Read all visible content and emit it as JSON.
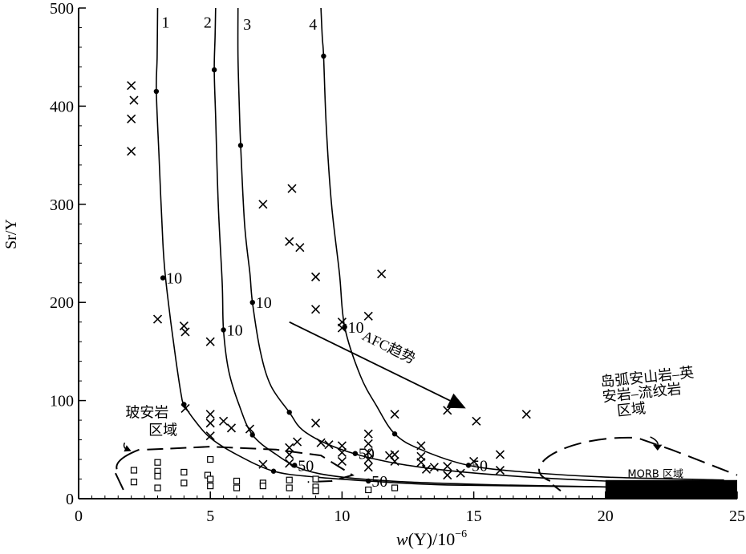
{
  "chart_data": {
    "type": "scatter",
    "xlabel_italic": "w",
    "xlabel_rest": "(Y)/10",
    "xlabel_sup": "−6",
    "ylabel": "Sr/Y",
    "xlim": [
      0,
      25
    ],
    "ylim": [
      0,
      500
    ],
    "x_ticks": [
      0,
      5,
      10,
      15,
      20,
      25
    ],
    "y_ticks": [
      0,
      100,
      200,
      300,
      400,
      500
    ],
    "x_minor_step": 0.5,
    "y_minor_step": 20,
    "grid": false,
    "curves": [
      {
        "label": "1",
        "points": [
          [
            3.0,
            500
          ],
          [
            2.98,
            450
          ],
          [
            2.95,
            415
          ],
          [
            3.05,
            350
          ],
          [
            3.2,
            260
          ],
          [
            3.3,
            225
          ],
          [
            3.5,
            180
          ],
          [
            3.7,
            140
          ],
          [
            3.9,
            105
          ],
          [
            4.0,
            96
          ],
          [
            4.4,
            80
          ],
          [
            5.0,
            62
          ],
          [
            6.0,
            45
          ],
          [
            7.4,
            28
          ],
          [
            9.0,
            22
          ],
          [
            11.0,
            18
          ],
          [
            14.0,
            14
          ],
          [
            20.0,
            12
          ],
          [
            24.5,
            10
          ]
        ],
        "markers": [
          [
            2.95,
            415
          ],
          [
            3.2,
            225
          ],
          [
            4.0,
            96
          ],
          [
            7.4,
            28
          ],
          [
            11.0,
            18
          ]
        ],
        "marker_labels": [
          {
            "text": "10",
            "at": [
              3.2,
              225
            ]
          },
          {
            "text": "50",
            "at": [
              11.0,
              18
            ]
          }
        ],
        "label_at": [
          3.3,
          480
        ]
      },
      {
        "label": "2",
        "points": [
          [
            5.2,
            500
          ],
          [
            5.18,
            470
          ],
          [
            5.15,
            437
          ],
          [
            5.2,
            390
          ],
          [
            5.3,
            300
          ],
          [
            5.45,
            220
          ],
          [
            5.5,
            172
          ],
          [
            5.7,
            130
          ],
          [
            6.1,
            95
          ],
          [
            6.6,
            65
          ],
          [
            7.5,
            45
          ],
          [
            8.5,
            30
          ],
          [
            10.0,
            22
          ],
          [
            12.5,
            17
          ],
          [
            16.0,
            14
          ],
          [
            20.0,
            12
          ],
          [
            24.5,
            10
          ]
        ],
        "markers": [
          [
            5.15,
            437
          ],
          [
            5.5,
            172
          ],
          [
            6.6,
            65
          ]
        ],
        "marker_labels": [
          {
            "text": "10",
            "at": [
              5.5,
              172
            ]
          }
        ],
        "label_at": [
          4.9,
          480
        ]
      },
      {
        "label": "3",
        "points": [
          [
            6.05,
            500
          ],
          [
            6.05,
            450
          ],
          [
            6.1,
            400
          ],
          [
            6.15,
            360
          ],
          [
            6.3,
            280
          ],
          [
            6.5,
            230
          ],
          [
            6.6,
            200
          ],
          [
            6.9,
            150
          ],
          [
            7.3,
            115
          ],
          [
            8.0,
            88
          ],
          [
            8.5,
            70
          ],
          [
            9.5,
            55
          ],
          [
            11.0,
            42
          ],
          [
            13.0,
            32
          ],
          [
            16.0,
            24
          ],
          [
            20.0,
            18
          ],
          [
            24.5,
            15
          ]
        ],
        "markers": [
          [
            6.15,
            360
          ],
          [
            6.6,
            200
          ],
          [
            8.0,
            88
          ],
          [
            8.2,
            34
          ]
        ],
        "marker_labels": [
          {
            "text": "10",
            "at": [
              6.6,
              200
            ]
          },
          {
            "text": "50",
            "at": [
              8.2,
              34
            ]
          }
        ],
        "label_at": [
          6.4,
          478
        ]
      },
      {
        "label": "4",
        "points": [
          [
            9.2,
            500
          ],
          [
            9.25,
            470
          ],
          [
            9.3,
            451
          ],
          [
            9.4,
            380
          ],
          [
            9.6,
            300
          ],
          [
            9.9,
            230
          ],
          [
            10.1,
            175
          ],
          [
            10.7,
            125
          ],
          [
            11.3,
            95
          ],
          [
            12.0,
            66
          ],
          [
            13.0,
            50
          ],
          [
            14.8,
            34
          ],
          [
            17.0,
            27
          ],
          [
            20.0,
            22
          ],
          [
            24.5,
            19
          ]
        ],
        "markers": [
          [
            9.3,
            451
          ],
          [
            10.1,
            175
          ],
          [
            10.5,
            46
          ],
          [
            12.0,
            66
          ],
          [
            14.8,
            34
          ]
        ],
        "marker_labels": [
          {
            "text": "10",
            "at": [
              10.1,
              175
            ]
          },
          {
            "text": "50",
            "at": [
              10.5,
              46
            ]
          },
          {
            "text": "50",
            "at": [
              14.8,
              34
            ]
          }
        ],
        "label_at": [
          8.9,
          478
        ]
      }
    ],
    "crosses": [
      [
        2.0,
        421
      ],
      [
        2.1,
        406
      ],
      [
        2.0,
        387
      ],
      [
        2.0,
        354
      ],
      [
        3.0,
        183
      ],
      [
        4.0,
        176
      ],
      [
        4.05,
        170
      ],
      [
        4.05,
        92
      ],
      [
        5.0,
        160
      ],
      [
        5.0,
        86
      ],
      [
        5.0,
        77
      ],
      [
        5.0,
        64
      ],
      [
        5.5,
        79
      ],
      [
        5.8,
        72
      ],
      [
        6.5,
        71
      ],
      [
        7.0,
        300
      ],
      [
        7.0,
        35
      ],
      [
        8.1,
        316
      ],
      [
        8.0,
        262
      ],
      [
        8.4,
        256
      ],
      [
        8.0,
        52
      ],
      [
        8.0,
        45
      ],
      [
        8.3,
        58
      ],
      [
        8.0,
        36
      ],
      [
        9.0,
        226
      ],
      [
        9.0,
        193
      ],
      [
        9.0,
        77
      ],
      [
        9.2,
        57
      ],
      [
        9.5,
        55
      ],
      [
        10.0,
        180
      ],
      [
        10.0,
        174
      ],
      [
        10.0,
        54
      ],
      [
        10.0,
        47
      ],
      [
        10.0,
        38
      ],
      [
        11.0,
        186
      ],
      [
        11.0,
        66
      ],
      [
        11.0,
        56
      ],
      [
        11.0,
        47
      ],
      [
        11.0,
        40
      ],
      [
        11.0,
        32
      ],
      [
        11.5,
        229
      ],
      [
        11.8,
        44
      ],
      [
        12.0,
        86
      ],
      [
        12.0,
        45
      ],
      [
        12.0,
        38
      ],
      [
        13.0,
        54
      ],
      [
        13.0,
        43
      ],
      [
        13.0,
        37
      ],
      [
        13.2,
        30
      ],
      [
        13.5,
        32
      ],
      [
        14.0,
        90
      ],
      [
        14.0,
        33
      ],
      [
        14.0,
        24
      ],
      [
        14.5,
        26
      ],
      [
        15.0,
        38
      ],
      [
        15.1,
        79
      ],
      [
        16.0,
        45
      ],
      [
        16.0,
        29
      ],
      [
        17.0,
        86
      ]
    ],
    "squares": [
      [
        2.1,
        29
      ],
      [
        2.1,
        17
      ],
      [
        3.0,
        37
      ],
      [
        3.0,
        28
      ],
      [
        3.0,
        23
      ],
      [
        3.0,
        11
      ],
      [
        4.0,
        27
      ],
      [
        4.0,
        16
      ],
      [
        4.9,
        24
      ],
      [
        5.0,
        20
      ],
      [
        5.0,
        13
      ],
      [
        5.0,
        40
      ],
      [
        6.0,
        18
      ],
      [
        6.0,
        11
      ],
      [
        7.0,
        16
      ],
      [
        7.0,
        13
      ],
      [
        8.0,
        19
      ],
      [
        8.0,
        11
      ],
      [
        9.0,
        20
      ],
      [
        9.0,
        12
      ],
      [
        9.0,
        8
      ],
      [
        11.0,
        9
      ],
      [
        12.0,
        11
      ]
    ],
    "afc_arrow": {
      "label": "AFC趋势",
      "from": [
        8.0,
        180
      ],
      "to": [
        14.7,
        92
      ]
    },
    "regions": [
      {
        "label_lines": [
          "玻安岩",
          "区域"
        ]
      },
      {
        "label_lines": [
          "岛弧安山岩–英",
          "安岩–流纹岩",
          "区域"
        ]
      },
      {
        "label": "MORB 区域",
        "fill": "#000000",
        "x_range": [
          20.0,
          25.0
        ],
        "y_range": [
          0,
          19
        ]
      }
    ]
  }
}
